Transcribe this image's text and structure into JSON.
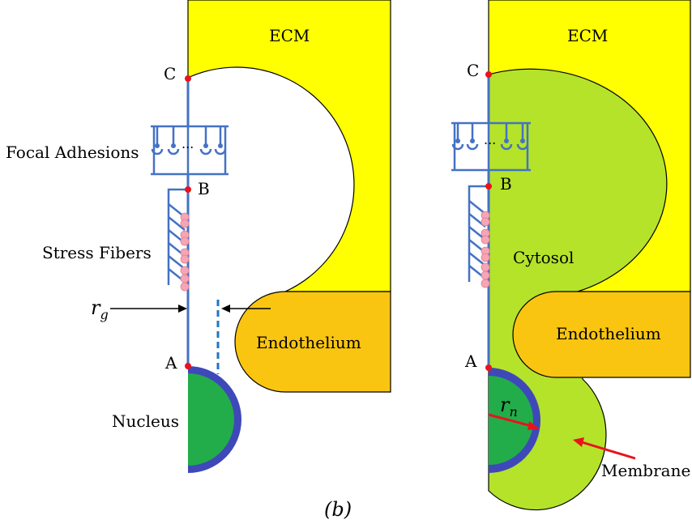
{
  "figure_label": "(b)",
  "left_panel": {
    "ecm_label": "ECM",
    "endothelium_label": "Endothelium",
    "nucleus_label": "Nucleus",
    "point_a": "A",
    "point_b": "B",
    "point_c": "C",
    "focal_adhesions_label": "Focal Adhesions",
    "stress_fibers_label": "Stress Fibers",
    "rg_symbol": "r",
    "rg_subscript": "g",
    "dots_label": "..."
  },
  "right_panel": {
    "ecm_label": "ECM",
    "endothelium_label": "Endothelium",
    "cytosol_label": "Cytosol",
    "membrane_label": "Membrane",
    "point_a": "A",
    "point_b": "B",
    "point_c": "C",
    "rn_symbol": "r",
    "rn_subscript": "n",
    "dots_label": "..."
  },
  "colors": {
    "ecm": "#ffff00",
    "endothelium": "#f9c510",
    "cytosol": "#b4e32a",
    "nucleus": "#22ad4a",
    "nuclear_envelope": "#3f48b8",
    "structure_blue": "#4472c4",
    "stress_fiber_pink": "#f4a6b4",
    "point_red": "#e8141c",
    "dashed_blue": "#1f77c4"
  }
}
